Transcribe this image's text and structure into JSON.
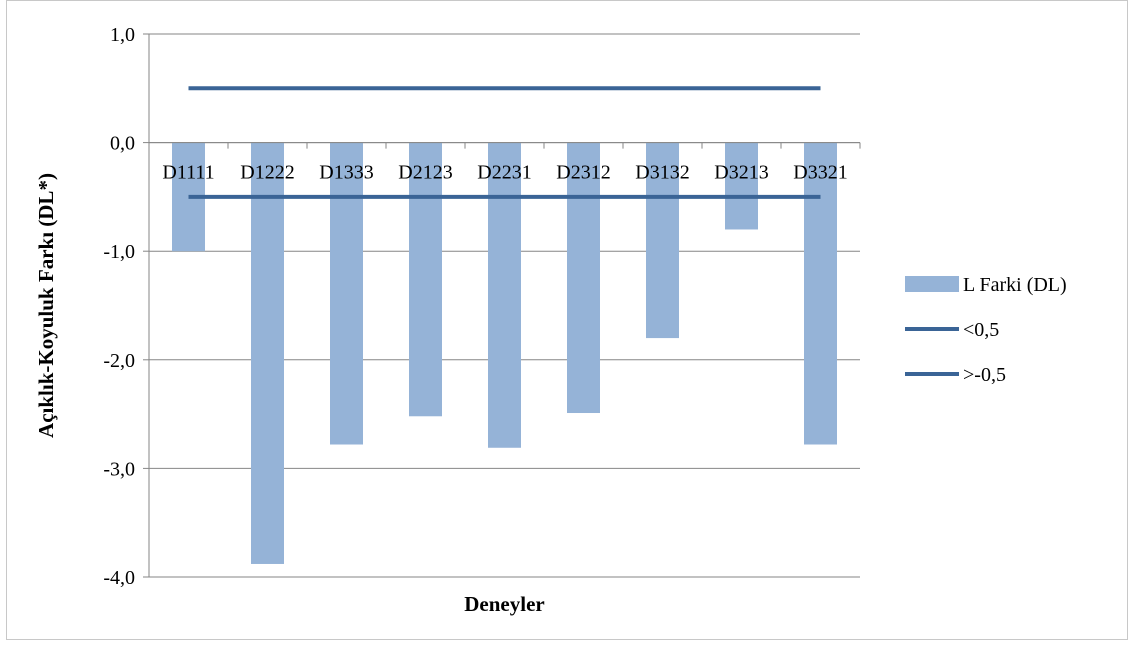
{
  "chart_data": {
    "type": "bar",
    "title": "",
    "xlabel": "Deneyler",
    "ylabel": "Açıklık-Koyuluk Farkı (DL*)",
    "ylim": [
      -4.0,
      1.0
    ],
    "yticks": [
      "1,0",
      "0,0",
      "-1,0",
      "-2,0",
      "-3,0",
      "-4,0"
    ],
    "ytick_values": [
      1,
      0,
      -1,
      -2,
      -3,
      -4
    ],
    "categories": [
      "D1111",
      "D1222",
      "D1333",
      "D2123",
      "D2231",
      "D2312",
      "D3132",
      "D3213",
      "D3321"
    ],
    "grid": true,
    "legend_position": "right",
    "series": [
      {
        "name": "L Farki (DL)",
        "type": "bar",
        "color": "#95b3d7",
        "values": [
          -1.0,
          -3.88,
          -2.78,
          -2.52,
          -2.81,
          -2.49,
          -1.8,
          -0.8,
          -2.78
        ]
      },
      {
        "name": "<0,5",
        "type": "line",
        "color": "#3a6496",
        "values": [
          0.5,
          0.5,
          0.5,
          0.5,
          0.5,
          0.5,
          0.5,
          0.5,
          0.5
        ]
      },
      {
        "name": ">-0,5",
        "type": "line",
        "color": "#3a6496",
        "values": [
          -0.5,
          -0.5,
          -0.5,
          -0.5,
          -0.5,
          -0.5,
          -0.5,
          -0.5,
          -0.5
        ]
      }
    ]
  }
}
